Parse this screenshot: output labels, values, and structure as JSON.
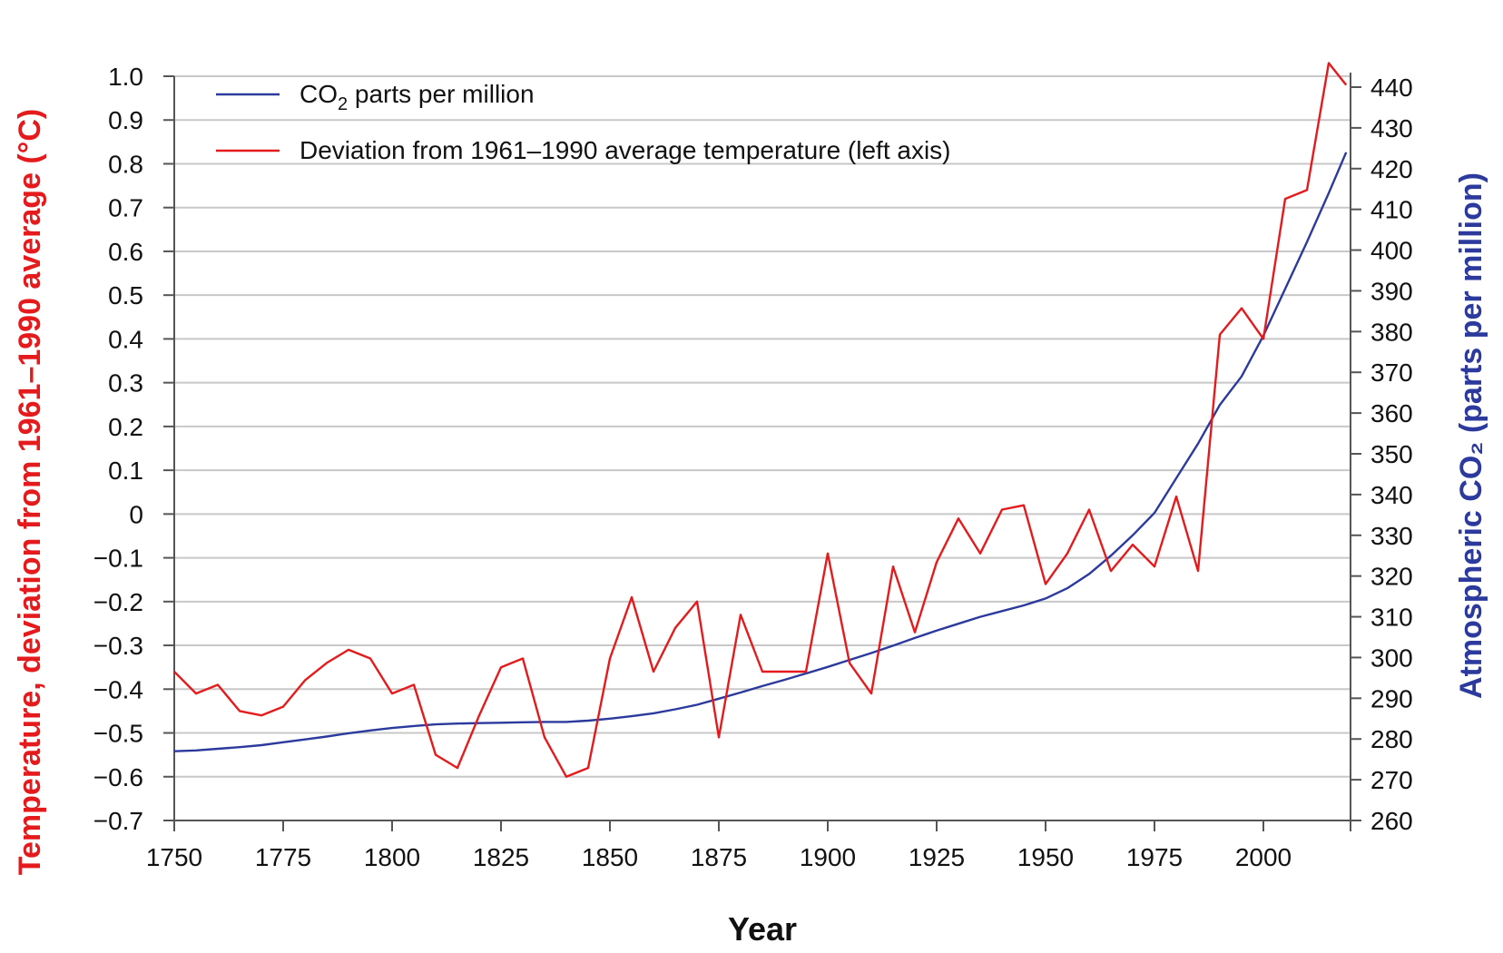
{
  "chart_data": {
    "type": "line",
    "title": "",
    "xlabel": "Year",
    "ylabel_left": "Temperature, deviation from 1961–1990 average (°C)",
    "ylabel_right": "Atmospheric CO₂ (parts per million)",
    "xlim": [
      1750,
      2020
    ],
    "ylim_left": [
      -0.7,
      1.0
    ],
    "ylim_right": [
      260,
      444
    ],
    "x_ticks": [
      1750,
      1775,
      1800,
      1825,
      1850,
      1875,
      1900,
      1925,
      1950,
      1975,
      2000
    ],
    "x_tick_labels": [
      "1750",
      "1775",
      "1800",
      "1825",
      "1850",
      "1875",
      "1900",
      "1925",
      "1950",
      "1975",
      "2000"
    ],
    "y_left_ticks": [
      1.0,
      0.9,
      0.8,
      0.7,
      0.6,
      0.5,
      0.4,
      0.3,
      0.2,
      0.1,
      0,
      -0.1,
      -0.2,
      -0.3,
      -0.4,
      -0.5,
      -0.6,
      -0.7
    ],
    "y_left_tick_labels": [
      "1.0",
      "0.9",
      "0.8",
      "0.7",
      "0.6",
      "0.5",
      "0.4",
      "0.3",
      "0.2",
      "0.1",
      "0",
      "−0.1",
      "−0.2",
      "−0.3",
      "−0.4",
      "−0.5",
      "−0.6",
      "−0.7"
    ],
    "y_right_ticks": [
      440,
      430,
      420,
      410,
      400,
      390,
      380,
      370,
      360,
      350,
      340,
      330,
      320,
      310,
      300,
      290,
      280,
      270,
      260
    ],
    "y_right_tick_labels": [
      "440",
      "430",
      "420",
      "410",
      "400",
      "390",
      "380",
      "370",
      "360",
      "350",
      "340",
      "330",
      "320",
      "310",
      "300",
      "290",
      "280",
      "270",
      "260"
    ],
    "grid": true,
    "legend_position": "top-left",
    "series": [
      {
        "name": "CO₂ parts per million",
        "legend_label": "CO",
        "legend_sub": "2",
        "legend_suffix": " parts per million",
        "axis": "right",
        "color": "#2b3a9c",
        "x": [
          1750,
          1755,
          1760,
          1765,
          1770,
          1775,
          1780,
          1785,
          1790,
          1795,
          1800,
          1805,
          1810,
          1815,
          1820,
          1825,
          1830,
          1835,
          1840,
          1845,
          1850,
          1855,
          1860,
          1865,
          1870,
          1875,
          1880,
          1885,
          1890,
          1895,
          1900,
          1905,
          1910,
          1915,
          1920,
          1925,
          1930,
          1935,
          1940,
          1945,
          1950,
          1955,
          1960,
          1965,
          1970,
          1975,
          1980,
          1985,
          1990,
          1995,
          2000,
          2005,
          2010,
          2015,
          2019
        ],
        "values": [
          277.0,
          277.2,
          277.6,
          278.0,
          278.5,
          279.2,
          279.9,
          280.6,
          281.4,
          282.1,
          282.7,
          283.2,
          283.6,
          283.8,
          283.9,
          284.0,
          284.1,
          284.2,
          284.2,
          284.5,
          285.0,
          285.6,
          286.3,
          287.3,
          288.4,
          289.9,
          291.4,
          293.0,
          294.5,
          296.1,
          297.7,
          299.4,
          301.1,
          302.9,
          304.8,
          306.6,
          308.3,
          310.0,
          311.4,
          312.8,
          314.5,
          317.0,
          320.5,
          325.0,
          330.0,
          335.5,
          344.0,
          352.5,
          362.0,
          369.0,
          379.0,
          390.5,
          402.0,
          414.0,
          424.0
        ]
      },
      {
        "name": "Deviation from 1961–1990 average temperature (left axis)",
        "legend_label": "Deviation from 1961–1990 average temperature (left axis)",
        "axis": "left",
        "color": "#e41a1c",
        "x": [
          1750,
          1755,
          1760,
          1765,
          1770,
          1775,
          1780,
          1785,
          1790,
          1795,
          1800,
          1805,
          1810,
          1815,
          1820,
          1825,
          1830,
          1835,
          1840,
          1845,
          1850,
          1855,
          1860,
          1865,
          1870,
          1875,
          1880,
          1885,
          1890,
          1895,
          1900,
          1905,
          1910,
          1915,
          1920,
          1925,
          1930,
          1935,
          1940,
          1945,
          1950,
          1955,
          1960,
          1965,
          1970,
          1975,
          1980,
          1985,
          1990,
          1995,
          2000,
          2005,
          2010,
          2015,
          2019
        ],
        "values": [
          -0.36,
          -0.41,
          -0.39,
          -0.45,
          -0.46,
          -0.44,
          -0.38,
          -0.34,
          -0.31,
          -0.33,
          -0.41,
          -0.39,
          -0.55,
          -0.58,
          -0.46,
          -0.35,
          -0.33,
          -0.51,
          -0.6,
          -0.58,
          -0.33,
          -0.19,
          -0.36,
          -0.26,
          -0.2,
          -0.51,
          -0.23,
          -0.36,
          -0.36,
          -0.36,
          -0.09,
          -0.34,
          -0.41,
          -0.12,
          -0.27,
          -0.11,
          -0.01,
          -0.09,
          0.01,
          0.02,
          -0.16,
          -0.09,
          0.01,
          -0.13,
          -0.07,
          -0.12,
          0.04,
          -0.13,
          0.41,
          0.47,
          0.4,
          0.72,
          0.74,
          1.03,
          0.98
        ]
      }
    ]
  }
}
